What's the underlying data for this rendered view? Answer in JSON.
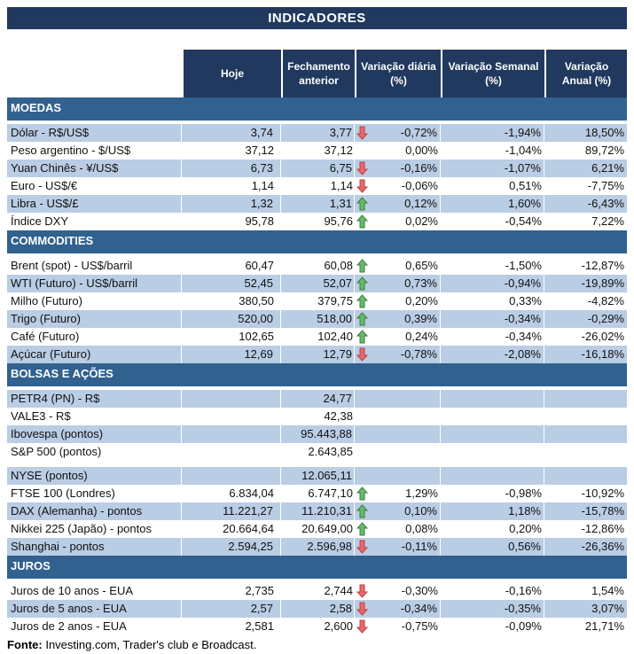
{
  "title": "INDICADORES",
  "columns": [
    {
      "line1": "Hoje",
      "line2": ""
    },
    {
      "line1": "Fechamento",
      "line2": "anterior"
    },
    {
      "line1": "Variação diária",
      "line2": "(%)"
    },
    {
      "line1": "Variação Semanal",
      "line2": "(%)"
    },
    {
      "line1": "Variação",
      "line2": "Anual (%)"
    }
  ],
  "sections": [
    {
      "name": "MOEDAS",
      "first_row_shaded": true,
      "rows": [
        {
          "label": "Dólar - R$/US$",
          "hoje": "3,74",
          "fechamento": "3,77",
          "arrow": "down",
          "var_diaria": "-0,72%",
          "var_semanal": "-1,94%",
          "var_anual": "18,50%"
        },
        {
          "label": "Peso argentino - $/US$",
          "hoje": "37,12",
          "fechamento": "37,12",
          "arrow": "",
          "var_diaria": "0,00%",
          "var_semanal": "-1,04%",
          "var_anual": "89,72%"
        },
        {
          "label": "Yuan Chinês - ¥/US$",
          "hoje": "6,73",
          "fechamento": "6,75",
          "arrow": "down",
          "var_diaria": "-0,16%",
          "var_semanal": "-1,07%",
          "var_anual": "6,21%"
        },
        {
          "label": "Euro - US$/€",
          "hoje": "1,14",
          "fechamento": "1,14",
          "arrow": "down",
          "var_diaria": "-0,06%",
          "var_semanal": "0,51%",
          "var_anual": "-7,75%"
        },
        {
          "label": "Libra - US$/£",
          "hoje": "1,32",
          "fechamento": "1,31",
          "arrow": "up",
          "var_diaria": "0,12%",
          "var_semanal": "1,60%",
          "var_anual": "-6,43%"
        },
        {
          "label": "Índice DXY",
          "hoje": "95,78",
          "fechamento": "95,76",
          "arrow": "up",
          "var_diaria": "0,02%",
          "var_semanal": "-0,54%",
          "var_anual": "7,22%"
        }
      ]
    },
    {
      "name": "COMMODITIES",
      "first_row_shaded": false,
      "rows": [
        {
          "label": "Brent (spot) - US$/barril",
          "hoje": "60,47",
          "fechamento": "60,08",
          "arrow": "up",
          "var_diaria": "0,65%",
          "var_semanal": "-1,50%",
          "var_anual": "-12,87%"
        },
        {
          "label": "WTI (Futuro) - US$/barril",
          "hoje": "52,45",
          "fechamento": "52,07",
          "arrow": "up",
          "var_diaria": "0,73%",
          "var_semanal": "-0,94%",
          "var_anual": "-19,89%"
        },
        {
          "label": "Milho (Futuro)",
          "hoje": "380,50",
          "fechamento": "379,75",
          "arrow": "up",
          "var_diaria": "0,20%",
          "var_semanal": "0,33%",
          "var_anual": "-4,82%"
        },
        {
          "label": "Trigo (Futuro)",
          "hoje": "520,00",
          "fechamento": "518,00",
          "arrow": "up",
          "var_diaria": "0,39%",
          "var_semanal": "-0,34%",
          "var_anual": "-0,29%"
        },
        {
          "label": "Café (Futuro)",
          "hoje": "102,65",
          "fechamento": "102,40",
          "arrow": "up",
          "var_diaria": "0,24%",
          "var_semanal": "-0,34%",
          "var_anual": "-26,02%"
        },
        {
          "label": "Açúcar (Futuro)",
          "hoje": "12,69",
          "fechamento": "12,79",
          "arrow": "down",
          "var_diaria": "-0,78%",
          "var_semanal": "-2,08%",
          "var_anual": "-16,18%"
        }
      ]
    },
    {
      "name": "BOLSAS E AÇÕES",
      "first_row_shaded": true,
      "rows": [
        {
          "label": "PETR4 (PN) - R$",
          "hoje": "",
          "fechamento": "24,77",
          "arrow": "",
          "var_diaria": "",
          "var_semanal": "",
          "var_anual": ""
        },
        {
          "label": "VALE3 - R$",
          "hoje": "",
          "fechamento": "42,38",
          "arrow": "",
          "var_diaria": "",
          "var_semanal": "",
          "var_anual": ""
        },
        {
          "label": "Ibovespa (pontos)",
          "hoje": "",
          "fechamento": "95.443,88",
          "arrow": "",
          "var_diaria": "",
          "var_semanal": "",
          "var_anual": ""
        },
        {
          "label": "S&P 500 (pontos)",
          "hoje": "",
          "fechamento": "2.643,85",
          "arrow": "",
          "var_diaria": "",
          "var_semanal": "",
          "var_anual": "",
          "spacer_after": true
        },
        {
          "label": "NYSE (pontos)",
          "hoje": "",
          "fechamento": "12.065,11",
          "arrow": "",
          "var_diaria": "",
          "var_semanal": "",
          "var_anual": ""
        },
        {
          "label": "FTSE 100 (Londres)",
          "hoje": "6.834,04",
          "fechamento": "6.747,10",
          "arrow": "up",
          "var_diaria": "1,29%",
          "var_semanal": "-0,98%",
          "var_anual": "-10,92%"
        },
        {
          "label": "DAX (Alemanha) - pontos",
          "hoje": "11.221,27",
          "fechamento": "11.210,31",
          "arrow": "up",
          "var_diaria": "0,10%",
          "var_semanal": "1,18%",
          "var_anual": "-15,78%"
        },
        {
          "label": "Nikkei 225 (Japão) - pontos",
          "hoje": "20.664,64",
          "fechamento": "20.649,00",
          "arrow": "up",
          "var_diaria": "0,08%",
          "var_semanal": "0,20%",
          "var_anual": "-12,86%"
        },
        {
          "label": "Shanghai - pontos",
          "hoje": "2.594,25",
          "fechamento": "2.596,98",
          "arrow": "down",
          "var_diaria": "-0,11%",
          "var_semanal": "0,56%",
          "var_anual": "-26,36%"
        }
      ]
    },
    {
      "name": "JUROS",
      "first_row_shaded": false,
      "rows": [
        {
          "label": "Juros de 10 anos - EUA",
          "hoje": "2,735",
          "fechamento": "2,744",
          "arrow": "down",
          "var_diaria": "-0,30%",
          "var_semanal": "-0,16%",
          "var_anual": "1,54%"
        },
        {
          "label": "Juros de 5 anos - EUA",
          "hoje": "2,57",
          "fechamento": "2,58",
          "arrow": "down",
          "var_diaria": "-0,34%",
          "var_semanal": "-0,35%",
          "var_anual": "3,07%"
        },
        {
          "label": "Juros de 2 anos - EUA",
          "hoje": "2,581",
          "fechamento": "2,600",
          "arrow": "down",
          "var_diaria": "-0,75%",
          "var_semanal": "-0,09%",
          "var_anual": "21,71%"
        }
      ]
    }
  ],
  "footer": {
    "label": "Fonte:",
    "text": " Investing.com, Trader's club e Broadcast."
  },
  "colors": {
    "navy": "#21395E",
    "section_blue": "#31618F",
    "row_blue": "#B9CDE4",
    "arrow_up": "#63BD6A",
    "arrow_up_border": "#3F7A43",
    "arrow_down": "#E8696B",
    "arrow_down_border": "#BE3F44"
  }
}
